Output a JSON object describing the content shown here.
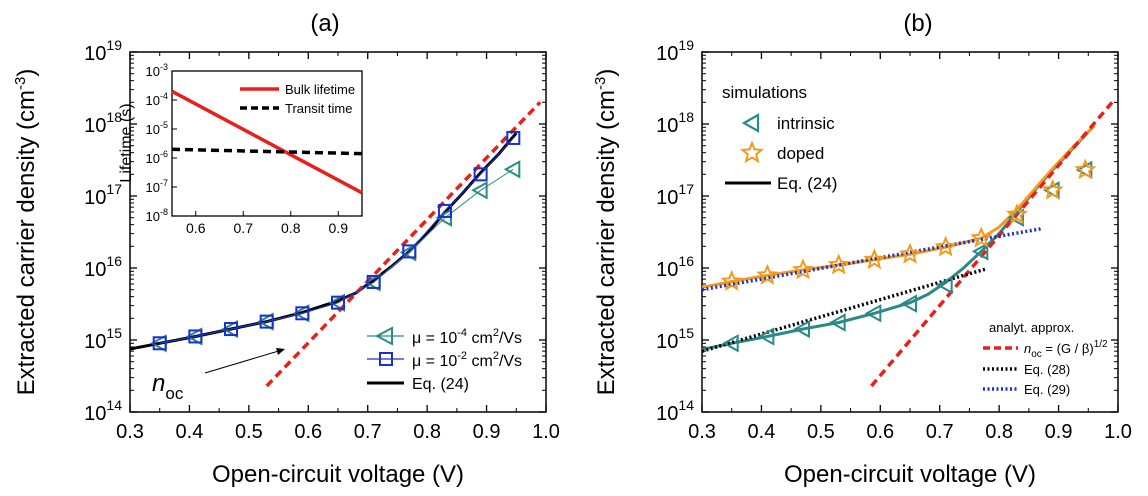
{
  "chart_data": [
    {
      "panel_label": "(a)",
      "type": "scatter",
      "xlabel": "Open-circuit voltage (V)",
      "ylabel": "Extracted carrier density (cm",
      "ylabel_sup": "-3",
      "ylabel_close": ")",
      "xlim": [
        0.3,
        1.0
      ],
      "ylim_log10": [
        14,
        19
      ],
      "yscale": "log",
      "x_ticks": [
        "0.3",
        "0.4",
        "0.5",
        "0.6",
        "0.7",
        "0.8",
        "0.9",
        "1.0"
      ],
      "y_ticks": [
        {
          "base": "10",
          "exp": "14"
        },
        {
          "base": "10",
          "exp": "15"
        },
        {
          "base": "10",
          "exp": "16"
        },
        {
          "base": "10",
          "exp": "17"
        },
        {
          "base": "10",
          "exp": "18"
        },
        {
          "base": "10",
          "exp": "19"
        }
      ],
      "annotation": {
        "text": "n",
        "sub": "oc",
        "arrow_to": [
          0.61,
          1500000000000000.0
        ]
      },
      "legend": [
        {
          "pre": "μ = 10",
          "sup": "-4",
          "post": " cm",
          "sup2": "2",
          "post2": "/Vs"
        },
        {
          "pre": "μ = 10",
          "sup": "-2",
          "post": " cm",
          "sup2": "2",
          "post2": "/Vs"
        },
        {
          "pre": "Eq. (24)"
        }
      ],
      "series": [
        {
          "name": "μ = 10^-4 cm2/Vs",
          "marker": "triangle-left",
          "color": "#2a8a86",
          "x": [
            0.35,
            0.41,
            0.47,
            0.53,
            0.59,
            0.65,
            0.71,
            0.77,
            0.83,
            0.89,
            0.945
          ],
          "y": [
            900000000000000.0,
            1120000000000000.0,
            1420000000000000.0,
            1800000000000000.0,
            2350000000000000.0,
            3300000000000000.0,
            6300000000000000.0,
            1.65e+16,
            5e+16,
            1.2e+17,
            2.35e+17
          ]
        },
        {
          "name": "μ = 10^-2 cm2/Vs",
          "marker": "square",
          "color": "#1a2fd0",
          "x": [
            0.35,
            0.41,
            0.47,
            0.53,
            0.59,
            0.65,
            0.71,
            0.77,
            0.83,
            0.89,
            0.945
          ],
          "y": [
            900000000000000.0,
            1120000000000000.0,
            1420000000000000.0,
            1800000000000000.0,
            2350000000000000.0,
            3300000000000000.0,
            6400000000000000.0,
            1.7e+16,
            6.2e+16,
            2e+17,
            6.4e+17
          ]
        },
        {
          "name": "Eq. (24)",
          "style": "line",
          "color": "#000000",
          "x": [
            0.3,
            0.35,
            0.41,
            0.47,
            0.53,
            0.59,
            0.65,
            0.68,
            0.71,
            0.74,
            0.77,
            0.8,
            0.83,
            0.86,
            0.89,
            0.92,
            0.95
          ],
          "y": [
            750000000000000.0,
            900000000000000.0,
            1120000000000000.0,
            1420000000000000.0,
            1800000000000000.0,
            2400000000000000.0,
            3500000000000000.0,
            4500000000000000.0,
            6800000000000000.0,
            1.05e+16,
            1.7e+16,
            3e+16,
            6e+16,
            1.1e+17,
            2.1e+17,
            3.8e+17,
            7.5e+17
          ]
        },
        {
          "name": "n_oc",
          "style": "dashed",
          "color": "#e8201a",
          "x": [
            0.53,
            0.99
          ],
          "y": [
            230000000000000.0,
            2e+18
          ]
        }
      ],
      "inset": {
        "ylabel": "Lifetime (s)",
        "xlim": [
          0.55,
          0.95
        ],
        "ylim_log10": [
          -8,
          -3
        ],
        "x_ticks": [
          "0.6",
          "0.7",
          "0.8",
          "0.9"
        ],
        "y_ticks": [
          {
            "base": "10",
            "exp": "-3"
          },
          {
            "base": "10",
            "exp": "-4"
          },
          {
            "base": "10",
            "exp": "-5"
          },
          {
            "base": "10",
            "exp": "-6"
          },
          {
            "base": "10",
            "exp": "-7"
          },
          {
            "base": "10",
            "exp": "-8"
          }
        ],
        "legend": [
          "Bulk lifetime",
          "Transit time"
        ],
        "series": [
          {
            "name": "Bulk lifetime",
            "color": "#e8201a",
            "style": "solid",
            "x": [
              0.55,
              0.95
            ],
            "y_log10": [
              -3.7,
              -7.2
            ]
          },
          {
            "name": "Transit time",
            "color": "#000000",
            "style": "dashed",
            "x": [
              0.55,
              0.95
            ],
            "y_log10": [
              -5.7,
              -5.85
            ]
          }
        ]
      }
    },
    {
      "panel_label": "(b)",
      "type": "scatter",
      "xlabel": "Open-circuit voltage (V)",
      "ylabel": "Extracted carrier density (cm",
      "ylabel_sup": "-3",
      "ylabel_close": ")",
      "xlim": [
        0.3,
        1.0
      ],
      "ylim_log10": [
        14,
        19
      ],
      "yscale": "log",
      "x_ticks": [
        "0.3",
        "0.4",
        "0.5",
        "0.6",
        "0.7",
        "0.8",
        "0.9",
        "1.0"
      ],
      "y_ticks": [
        {
          "base": "10",
          "exp": "14"
        },
        {
          "base": "10",
          "exp": "15"
        },
        {
          "base": "10",
          "exp": "16"
        },
        {
          "base": "10",
          "exp": "17"
        },
        {
          "base": "10",
          "exp": "18"
        },
        {
          "base": "10",
          "exp": "19"
        }
      ],
      "legend_top": {
        "title": "simulations",
        "items": [
          "intrinsic",
          "doped",
          "Eq. (24)"
        ]
      },
      "legend_bottom": {
        "title": "analyt. approx.",
        "items": [
          {
            "pre": "n",
            "sub": "oc",
            "post": " = (G / β)",
            "sup": "1/2"
          },
          {
            "pre": "Eq. (28)"
          },
          {
            "pre": "Eq. (29)"
          }
        ]
      },
      "series": [
        {
          "name": "intrinsic",
          "marker": "triangle-left",
          "color": "#2a8a86",
          "x": [
            0.35,
            0.41,
            0.47,
            0.53,
            0.59,
            0.65,
            0.71,
            0.77,
            0.83,
            0.89,
            0.945
          ],
          "y": [
            900000000000000.0,
            1120000000000000.0,
            1420000000000000.0,
            1750000000000000.0,
            2350000000000000.0,
            3200000000000000.0,
            5800000000000000.0,
            1.7e+16,
            5e+16,
            1.2e+17,
            2.3e+17
          ]
        },
        {
          "name": "doped",
          "marker": "star",
          "color": "#f39a1e",
          "x": [
            0.35,
            0.41,
            0.47,
            0.53,
            0.59,
            0.65,
            0.71,
            0.77,
            0.83,
            0.89,
            0.945
          ],
          "y": [
            6500000000000000.0,
            7900000000000000.0,
            9400000000000000.0,
            1.1e+16,
            1.3e+16,
            1.55e+16,
            1.95e+16,
            2.6e+16,
            5.5e+16,
            1.2e+17,
            2.3e+17
          ]
        },
        {
          "name": "Eq. (24) intrinsic",
          "style": "line",
          "color": "#2a8a86",
          "x": [
            0.3,
            0.35,
            0.41,
            0.47,
            0.53,
            0.59,
            0.65,
            0.68,
            0.71,
            0.74,
            0.77,
            0.8,
            0.83,
            0.86,
            0.89,
            0.92,
            0.96
          ],
          "y": [
            740000000000000.0,
            900000000000000.0,
            1120000000000000.0,
            1420000000000000.0,
            1750000000000000.0,
            2350000000000000.0,
            3300000000000000.0,
            4300000000000000.0,
            6300000000000000.0,
            1e+16,
            1.7e+16,
            3e+16,
            6e+16,
            1.2e+17,
            2.3e+17,
            4.2e+17,
            9.5e+17
          ]
        },
        {
          "name": "Eq. (24) doped",
          "style": "line",
          "color": "#f39a1e",
          "x": [
            0.3,
            0.35,
            0.41,
            0.47,
            0.53,
            0.59,
            0.65,
            0.71,
            0.77,
            0.8,
            0.83,
            0.86,
            0.89,
            0.92,
            0.96
          ],
          "y": [
            5400000000000000.0,
            6500000000000000.0,
            7900000000000000.0,
            9400000000000000.0,
            1.1e+16,
            1.3e+16,
            1.55e+16,
            1.95e+16,
            2.6e+16,
            3.7e+16,
            6.5e+16,
            1.25e+17,
            2.4e+17,
            4.4e+17,
            9.5e+17
          ]
        },
        {
          "name": "n_oc = (G/β)^1/2",
          "style": "dashed",
          "color": "#e8201a",
          "x": [
            0.585,
            0.99
          ],
          "y": [
            230000000000000.0,
            2e+18
          ]
        },
        {
          "name": "Eq. (28)",
          "style": "dotted",
          "color": "#000000",
          "x": [
            0.3,
            0.78
          ],
          "y": [
            700000000000000.0,
            9800000000000000.0
          ]
        },
        {
          "name": "Eq. (29)",
          "style": "dotted",
          "color": "#1a2fd0",
          "x": [
            0.3,
            0.87
          ],
          "y": [
            5000000000000000.0,
            3.5e+16
          ]
        }
      ]
    }
  ]
}
